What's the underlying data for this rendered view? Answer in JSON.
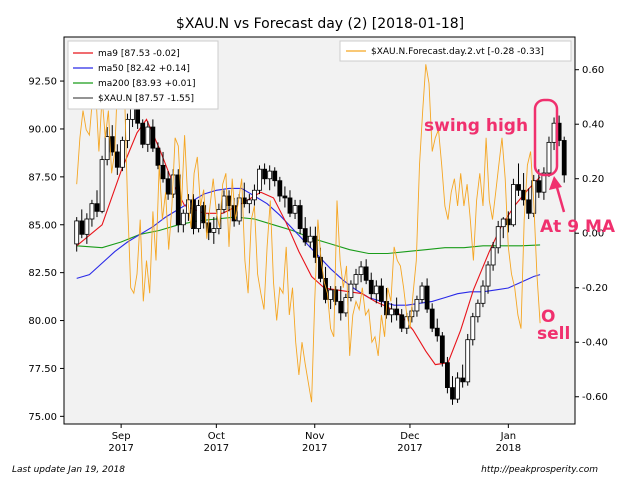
{
  "chart_data": {
    "type": "candlestick",
    "title": "$XAU.N vs Forecast day (2)  [2018-01-18]",
    "left_axis": {
      "ylim": [
        74.6,
        94.8
      ],
      "ticks": [
        75.0,
        77.5,
        80.0,
        82.5,
        85.0,
        87.5,
        90.0,
        92.5
      ]
    },
    "right_axis": {
      "ylim": [
        -0.7,
        0.72
      ],
      "ticks": [
        -0.6,
        -0.4,
        -0.2,
        0.0,
        0.2,
        0.4,
        0.6
      ]
    },
    "x_ticks": [
      {
        "label": "Sep",
        "year": "2017",
        "day": 14
      },
      {
        "label": "Oct",
        "year": "2017",
        "day": 44
      },
      {
        "label": "Nov",
        "year": "2017",
        "day": 75
      },
      {
        "label": "Dec",
        "year": "2017",
        "day": 105
      },
      {
        "label": "Jan",
        "year": "2018",
        "day": 136
      }
    ],
    "x_range": [
      -4,
      157
    ],
    "grid": false,
    "legend_left": {
      "placement": "top-left",
      "entries": [
        {
          "label": "ma9 [87.53 -0.02]",
          "color": "#e8141b"
        },
        {
          "label": "ma50 [82.42 +0.14]",
          "color": "#2a2ae8"
        },
        {
          "label": "ma200 [83.93 +0.01]",
          "color": "#199c19"
        },
        {
          "label": "$XAU.N [87.57 -1.55]",
          "color": "#555555"
        }
      ]
    },
    "legend_right": {
      "placement": "top-right",
      "entries": [
        {
          "label": "$XAU.N.Forecast.day.2.vt [-0.28 -0.33]",
          "color": "#f5a623"
        }
      ]
    },
    "candles": [
      [
        84.0,
        85.4,
        83.6,
        85.2
      ],
      [
        85.2,
        85.8,
        84.3,
        84.5
      ],
      [
        84.5,
        85.6,
        84.0,
        85.3
      ],
      [
        85.3,
        86.3,
        84.9,
        86.1
      ],
      [
        86.1,
        86.8,
        85.4,
        85.7
      ],
      [
        85.7,
        88.6,
        85.6,
        88.4
      ],
      [
        88.4,
        90.1,
        88.1,
        89.6
      ],
      [
        89.6,
        90.2,
        88.6,
        88.8
      ],
      [
        88.8,
        89.2,
        87.6,
        88.0
      ],
      [
        88.0,
        89.6,
        87.8,
        89.4
      ],
      [
        89.4,
        90.8,
        89.0,
        90.5
      ],
      [
        90.5,
        91.6,
        90.1,
        91.2
      ],
      [
        91.2,
        91.4,
        90.0,
        90.3
      ],
      [
        90.3,
        90.5,
        89.0,
        89.2
      ],
      [
        89.2,
        90.4,
        88.8,
        90.1
      ],
      [
        90.1,
        90.5,
        88.8,
        89.0
      ],
      [
        89.0,
        89.3,
        87.9,
        88.1
      ],
      [
        88.1,
        88.8,
        87.2,
        87.4
      ],
      [
        87.4,
        87.8,
        86.3,
        86.6
      ],
      [
        86.6,
        87.9,
        86.4,
        87.6
      ],
      [
        87.6,
        87.9,
        84.6,
        85.0
      ],
      [
        85.0,
        85.8,
        84.6,
        85.6
      ],
      [
        85.6,
        86.6,
        85.2,
        86.3
      ],
      [
        86.3,
        86.6,
        84.5,
        84.8
      ],
      [
        84.8,
        86.3,
        84.6,
        86.0
      ],
      [
        86.0,
        86.2,
        84.8,
        85.1
      ],
      [
        85.1,
        85.6,
        84.2,
        84.6
      ],
      [
        84.6,
        85.4,
        84.0,
        84.8
      ],
      [
        84.8,
        86.1,
        84.5,
        85.8
      ],
      [
        85.8,
        86.8,
        85.6,
        86.5
      ],
      [
        86.5,
        86.8,
        85.7,
        86.0
      ],
      [
        86.0,
        86.4,
        84.9,
        85.2
      ],
      [
        85.2,
        86.6,
        85.0,
        86.4
      ],
      [
        86.4,
        87.2,
        85.9,
        86.1
      ],
      [
        86.1,
        86.6,
        85.6,
        86.3
      ],
      [
        86.3,
        87.1,
        86.0,
        86.8
      ],
      [
        86.8,
        88.1,
        86.6,
        87.9
      ],
      [
        87.9,
        88.2,
        87.1,
        87.4
      ],
      [
        87.4,
        88.1,
        86.8,
        87.8
      ],
      [
        87.8,
        88.0,
        87.0,
        87.3
      ],
      [
        87.3,
        87.5,
        86.2,
        86.5
      ],
      [
        86.5,
        87.0,
        85.9,
        86.4
      ],
      [
        86.4,
        86.8,
        85.4,
        85.6
      ],
      [
        85.6,
        86.3,
        85.3,
        86.0
      ],
      [
        86.0,
        86.3,
        84.5,
        84.8
      ],
      [
        84.8,
        85.4,
        83.9,
        84.1
      ],
      [
        84.1,
        84.9,
        83.8,
        84.4
      ],
      [
        84.4,
        84.9,
        83.0,
        83.3
      ],
      [
        83.3,
        83.8,
        82.0,
        82.2
      ],
      [
        82.2,
        82.8,
        80.9,
        81.1
      ],
      [
        81.1,
        81.8,
        80.6,
        81.6
      ],
      [
        81.6,
        81.8,
        80.8,
        81.0
      ],
      [
        81.0,
        81.8,
        80.0,
        80.4
      ],
      [
        80.4,
        81.4,
        80.2,
        81.2
      ],
      [
        81.2,
        82.1,
        81.0,
        81.9
      ],
      [
        81.9,
        82.7,
        81.6,
        82.4
      ],
      [
        82.4,
        83.1,
        82.0,
        82.8
      ],
      [
        82.8,
        83.2,
        81.9,
        82.1
      ],
      [
        82.1,
        82.5,
        81.1,
        81.4
      ],
      [
        81.4,
        82.1,
        80.9,
        81.8
      ],
      [
        81.8,
        82.2,
        80.7,
        81.0
      ],
      [
        81.0,
        81.7,
        80.1,
        80.3
      ],
      [
        80.3,
        80.9,
        79.9,
        80.6
      ],
      [
        80.6,
        81.2,
        80.0,
        80.3
      ],
      [
        80.3,
        80.6,
        79.4,
        79.6
      ],
      [
        79.6,
        80.4,
        79.3,
        80.2
      ],
      [
        80.2,
        80.7,
        79.9,
        80.5
      ],
      [
        80.5,
        81.3,
        80.2,
        81.1
      ],
      [
        81.1,
        82.0,
        80.9,
        81.8
      ],
      [
        81.8,
        82.2,
        80.4,
        80.6
      ],
      [
        80.6,
        80.9,
        79.4,
        79.6
      ],
      [
        79.6,
        80.1,
        78.9,
        79.2
      ],
      [
        79.2,
        79.4,
        77.6,
        77.8
      ],
      [
        77.8,
        78.1,
        76.2,
        76.5
      ],
      [
        76.5,
        77.1,
        75.6,
        75.9
      ],
      [
        75.9,
        77.3,
        75.7,
        77.0
      ],
      [
        77.0,
        77.7,
        76.5,
        76.8
      ],
      [
        76.8,
        79.3,
        76.6,
        79.0
      ],
      [
        79.0,
        80.4,
        78.7,
        80.2
      ],
      [
        80.2,
        81.1,
        79.9,
        80.9
      ],
      [
        80.9,
        82.1,
        80.7,
        81.8
      ],
      [
        81.8,
        83.1,
        81.4,
        82.9
      ],
      [
        82.9,
        84.1,
        82.6,
        83.8
      ],
      [
        83.8,
        85.2,
        83.5,
        84.9
      ],
      [
        84.9,
        85.4,
        84.3,
        85.3
      ],
      [
        85.3,
        85.7,
        84.6,
        85.0
      ],
      [
        85.0,
        87.4,
        84.9,
        87.1
      ],
      [
        87.1,
        88.2,
        86.5,
        86.8
      ],
      [
        86.8,
        87.7,
        86.0,
        86.3
      ],
      [
        86.3,
        86.9,
        85.3,
        85.6
      ],
      [
        85.6,
        87.6,
        85.4,
        87.3
      ],
      [
        87.3,
        87.9,
        86.4,
        86.7
      ],
      [
        86.7,
        88.0,
        86.3,
        87.7
      ],
      [
        87.7,
        89.6,
        87.5,
        89.3
      ],
      [
        89.3,
        90.6,
        88.9,
        90.3
      ],
      [
        90.3,
        90.7,
        89.1,
        89.4
      ],
      [
        89.4,
        89.6,
        87.2,
        87.6
      ]
    ],
    "candle_day_step": 1.6,
    "ma9": [
      [
        0,
        83.9
      ],
      [
        8,
        85.0
      ],
      [
        14,
        87.8
      ],
      [
        19,
        89.8
      ],
      [
        22,
        90.5
      ],
      [
        26,
        89.0
      ],
      [
        30,
        87.3
      ],
      [
        34,
        86.0
      ],
      [
        40,
        85.6
      ],
      [
        46,
        85.6
      ],
      [
        52,
        86.1
      ],
      [
        58,
        86.7
      ],
      [
        62,
        86.4
      ],
      [
        66,
        85.1
      ],
      [
        70,
        83.6
      ],
      [
        74,
        82.3
      ],
      [
        78,
        81.7
      ],
      [
        82,
        81.6
      ],
      [
        86,
        81.5
      ],
      [
        90,
        81.4
      ],
      [
        94,
        81.0
      ],
      [
        98,
        80.7
      ],
      [
        102,
        80.3
      ],
      [
        106,
        79.5
      ],
      [
        110,
        78.4
      ],
      [
        113,
        77.7
      ],
      [
        117,
        77.8
      ],
      [
        121,
        79.5
      ],
      [
        125,
        81.6
      ],
      [
        130,
        83.6
      ],
      [
        134,
        85.0
      ],
      [
        138,
        86.0
      ],
      [
        142,
        86.8
      ],
      [
        146,
        87.5
      ]
    ],
    "ma50": [
      [
        0,
        82.2
      ],
      [
        4,
        82.4
      ],
      [
        8,
        83.0
      ],
      [
        12,
        83.6
      ],
      [
        16,
        84.1
      ],
      [
        20,
        84.5
      ],
      [
        24,
        84.9
      ],
      [
        28,
        85.4
      ],
      [
        32,
        85.8
      ],
      [
        36,
        86.2
      ],
      [
        40,
        86.6
      ],
      [
        44,
        86.8
      ],
      [
        48,
        86.9
      ],
      [
        52,
        86.9
      ],
      [
        56,
        86.5
      ],
      [
        60,
        86.1
      ],
      [
        64,
        85.5
      ],
      [
        68,
        84.8
      ],
      [
        72,
        84.1
      ],
      [
        76,
        83.4
      ],
      [
        80,
        82.7
      ],
      [
        84,
        82.1
      ],
      [
        88,
        81.6
      ],
      [
        92,
        81.2
      ],
      [
        96,
        81.0
      ],
      [
        100,
        80.8
      ],
      [
        104,
        80.8
      ],
      [
        108,
        80.9
      ],
      [
        112,
        81.0
      ],
      [
        116,
        81.2
      ],
      [
        120,
        81.4
      ],
      [
        124,
        81.5
      ],
      [
        128,
        81.5
      ],
      [
        132,
        81.6
      ],
      [
        136,
        81.7
      ],
      [
        140,
        82.0
      ],
      [
        144,
        82.3
      ],
      [
        146,
        82.4
      ]
    ],
    "ma200": [
      [
        0,
        83.9
      ],
      [
        8,
        83.8
      ],
      [
        14,
        84.1
      ],
      [
        20,
        84.5
      ],
      [
        26,
        84.7
      ],
      [
        32,
        85.0
      ],
      [
        38,
        85.2
      ],
      [
        44,
        85.3
      ],
      [
        50,
        85.4
      ],
      [
        56,
        85.3
      ],
      [
        62,
        85.0
      ],
      [
        68,
        84.7
      ],
      [
        74,
        84.3
      ],
      [
        80,
        84.0
      ],
      [
        86,
        83.7
      ],
      [
        92,
        83.5
      ],
      [
        98,
        83.5
      ],
      [
        104,
        83.6
      ],
      [
        110,
        83.7
      ],
      [
        116,
        83.8
      ],
      [
        122,
        83.8
      ],
      [
        128,
        83.9
      ],
      [
        134,
        83.9
      ],
      [
        140,
        83.9
      ],
      [
        146,
        83.95
      ]
    ],
    "forecast": [
      [
        0,
        0.18
      ],
      [
        1,
        0.35
      ],
      [
        2,
        0.45
      ],
      [
        3,
        0.38
      ],
      [
        4,
        0.36
      ],
      [
        5,
        0.5
      ],
      [
        6,
        0.52
      ],
      [
        7,
        0.3
      ],
      [
        8,
        0.5
      ],
      [
        9,
        0.35
      ],
      [
        10,
        0.45
      ],
      [
        11,
        0.22
      ],
      [
        12,
        0.3
      ],
      [
        13,
        0.6
      ],
      [
        14,
        0.48
      ],
      [
        15,
        0.55
      ],
      [
        16,
        0.12
      ],
      [
        17,
        -0.2
      ],
      [
        18,
        -0.22
      ],
      [
        19,
        -0.15
      ],
      [
        20,
        0.05
      ],
      [
        21,
        -0.25
      ],
      [
        22,
        -0.1
      ],
      [
        23,
        -0.22
      ],
      [
        24,
        0.08
      ],
      [
        25,
        -0.1
      ],
      [
        26,
        0.25
      ],
      [
        27,
        0.05
      ],
      [
        28,
        0.15
      ],
      [
        29,
        -0.06
      ],
      [
        30,
        0.1
      ],
      [
        31,
        0.35
      ],
      [
        32,
        0.32
      ],
      [
        33,
        0.1
      ],
      [
        34,
        0.36
      ],
      [
        35,
        0.12
      ],
      [
        36,
        0.02
      ],
      [
        37,
        0.22
      ],
      [
        38,
        0.28
      ],
      [
        39,
        0.1
      ],
      [
        40,
        0.16
      ],
      [
        41,
        -0.02
      ],
      [
        42,
        0.1
      ],
      [
        43,
        0.2
      ],
      [
        44,
        0.08
      ],
      [
        45,
        0.02
      ],
      [
        46,
        0.18
      ],
      [
        47,
        0.22
      ],
      [
        48,
        -0.05
      ],
      [
        49,
        0.2
      ],
      [
        50,
        0.05
      ],
      [
        51,
        0.12
      ],
      [
        52,
        0.2
      ],
      [
        53,
        -0.1
      ],
      [
        54,
        -0.22
      ],
      [
        55,
        0.05
      ],
      [
        56,
        0.1
      ],
      [
        57,
        -0.15
      ],
      [
        58,
        -0.22
      ],
      [
        59,
        -0.28
      ],
      [
        60,
        -0.05
      ],
      [
        61,
        0.12
      ],
      [
        62,
        -0.18
      ],
      [
        63,
        -0.32
      ],
      [
        64,
        -0.2
      ],
      [
        65,
        -0.22
      ],
      [
        66,
        -0.05
      ],
      [
        67,
        -0.3
      ],
      [
        68,
        -0.2
      ],
      [
        69,
        -0.4
      ],
      [
        70,
        -0.52
      ],
      [
        71,
        -0.4
      ],
      [
        72,
        -0.48
      ],
      [
        73,
        -0.55
      ],
      [
        74,
        -0.62
      ],
      [
        75,
        -0.25
      ],
      [
        76,
        0.05
      ],
      [
        77,
        -0.1
      ],
      [
        78,
        -0.18
      ],
      [
        79,
        -0.22
      ],
      [
        80,
        -0.35
      ],
      [
        81,
        -0.38
      ],
      [
        82,
        0.12
      ],
      [
        83,
        -0.1
      ],
      [
        84,
        -0.2
      ],
      [
        85,
        -0.12
      ],
      [
        86,
        -0.45
      ],
      [
        87,
        -0.3
      ],
      [
        88,
        -0.25
      ],
      [
        89,
        -0.28
      ],
      [
        90,
        -0.2
      ],
      [
        91,
        -0.3
      ],
      [
        92,
        -0.28
      ],
      [
        93,
        -0.4
      ],
      [
        94,
        -0.38
      ],
      [
        95,
        -0.45
      ],
      [
        96,
        -0.3
      ],
      [
        97,
        -0.38
      ],
      [
        98,
        -0.2
      ],
      [
        99,
        -0.25
      ],
      [
        100,
        -0.05
      ],
      [
        101,
        -0.1
      ],
      [
        102,
        -0.12
      ],
      [
        103,
        -0.2
      ],
      [
        104,
        -0.3
      ],
      [
        105,
        -0.35
      ],
      [
        106,
        -0.22
      ],
      [
        107,
        -0.1
      ],
      [
        108,
        0.25
      ],
      [
        109,
        0.45
      ],
      [
        110,
        0.62
      ],
      [
        111,
        0.55
      ],
      [
        112,
        0.3
      ],
      [
        113,
        0.35
      ],
      [
        114,
        0.38
      ],
      [
        115,
        0.25
      ],
      [
        116,
        0.1
      ],
      [
        117,
        0.05
      ],
      [
        118,
        0.15
      ],
      [
        119,
        0.2
      ],
      [
        120,
        0.1
      ],
      [
        121,
        0.22
      ],
      [
        122,
        0.1
      ],
      [
        123,
        0.18
      ],
      [
        124,
        0.05
      ],
      [
        125,
        -0.1
      ],
      [
        126,
        0.12
      ],
      [
        127,
        0.22
      ],
      [
        128,
        0.1
      ],
      [
        129,
        0.35
      ],
      [
        130,
        0.12
      ],
      [
        131,
        0.05
      ],
      [
        132,
        0.15
      ],
      [
        133,
        0.25
      ],
      [
        134,
        0.35
      ],
      [
        135,
        0.2
      ],
      [
        136,
        -0.05
      ],
      [
        137,
        -0.15
      ],
      [
        138,
        -0.2
      ],
      [
        139,
        -0.3
      ],
      [
        140,
        -0.35
      ],
      [
        141,
        0.05
      ],
      [
        142,
        0.25
      ],
      [
        143,
        0.3
      ],
      [
        144,
        0.12
      ],
      [
        145,
        -0.15
      ],
      [
        146,
        -0.33
      ]
    ],
    "annotations": [
      {
        "text": "swing high",
        "kind": "label"
      },
      {
        "text": "At 9 MA",
        "kind": "label"
      },
      {
        "text": "O",
        "kind": "label"
      },
      {
        "text": "sell",
        "kind": "label"
      }
    ],
    "annotation_color": "#f0306e"
  },
  "footer": {
    "left": "Last update Jan 19, 2018",
    "right": "http://peakprosperity.com"
  }
}
